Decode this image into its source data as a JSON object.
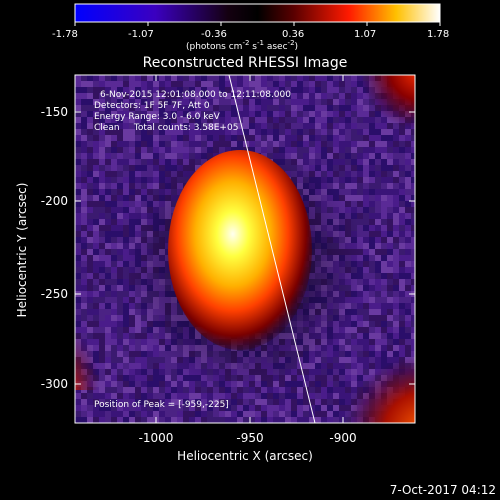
{
  "title": "Reconstructed RHESSI Image",
  "colorbar": {
    "ticks": [
      "-1.78",
      "-1.07",
      "-0.36",
      "0.36",
      "1.07",
      "1.78"
    ],
    "unit_main": "(photons cm",
    "unit_exp1": "-2",
    "unit_mid": " s",
    "unit_exp2": "-1",
    "unit_mid2": " asec",
    "unit_exp3": "-2",
    "unit_end": ")"
  },
  "info": {
    "line1": "6-Nov-2015 12:01:08.000 to 12:11:08.000",
    "line2": "Detectors: 1F 5F 7F, Att 0",
    "line3": "Energy Range: 3.0 - 6.0 keV",
    "line4": "Clean     Total counts: 3.58E+05",
    "peak": "Position of Peak = [-959,-225]"
  },
  "axes": {
    "xlabel": "Heliocentric X (arcsec)",
    "ylabel": "Heliocentric Y (arcsec)",
    "xticks": [
      "-1000",
      "-950",
      "-900"
    ],
    "yticks": [
      "-150",
      "-200",
      "-250",
      "-300"
    ]
  },
  "timestamp": "7-Oct-2017 04:12",
  "colors": {
    "background": "#000000",
    "colormap": [
      "#0000ff",
      "#000000",
      "#ff0000",
      "#ffff00",
      "#ffffff"
    ]
  }
}
